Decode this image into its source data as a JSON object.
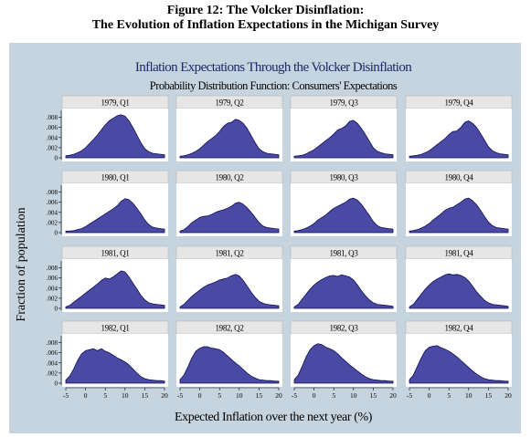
{
  "figure": {
    "title_line1": "Figure 12: The Volcker Disinflation:",
    "title_line2": "The Evolution of Inflation Expectations in the Michigan Survey"
  },
  "colors": {
    "panel_bg": "#c6d4df",
    "plot_bg": "#ffffff",
    "fill": "#4a4aa5",
    "stroke": "#101050",
    "title_color": "#1a2a6a",
    "subplot_header_bg": "#e6e6e6"
  },
  "chart_data": {
    "type": "area",
    "title": "Inflation Expectations Through the Volcker Disinflation",
    "subtitle": "Probability Distribution Function: Consumers' Expectations",
    "xlabel": "Expected Inflation over the next year (%)",
    "ylabel": "Fraction of population",
    "xlim": [
      -5,
      20
    ],
    "ylim": [
      0,
      0.009
    ],
    "xticks": [
      -5,
      0,
      5,
      10,
      15,
      20
    ],
    "xtick_labels": [
      "-5",
      "0",
      "5",
      "10",
      "15",
      "20"
    ],
    "yticks": [
      0,
      0.002,
      0.004,
      0.006,
      0.008
    ],
    "ytick_labels": [
      "0",
      ".002",
      ".004",
      ".006",
      ".008"
    ],
    "x": [
      -5,
      -4,
      -3,
      -2,
      -1,
      0,
      1,
      2,
      3,
      4,
      5,
      6,
      7,
      8,
      9,
      10,
      11,
      12,
      13,
      14,
      15,
      16,
      17,
      18,
      19,
      20
    ],
    "series": [
      {
        "name": "1979, Q1",
        "values": [
          0.0004,
          0.0005,
          0.0007,
          0.001,
          0.0014,
          0.002,
          0.0028,
          0.0036,
          0.0045,
          0.0055,
          0.0065,
          0.0073,
          0.0078,
          0.0083,
          0.0085,
          0.0082,
          0.0073,
          0.006,
          0.0045,
          0.003,
          0.0018,
          0.0012,
          0.0009,
          0.0008,
          0.0007,
          0.0006
        ]
      },
      {
        "name": "1979, Q2",
        "values": [
          0.0003,
          0.0004,
          0.0006,
          0.0009,
          0.0013,
          0.0018,
          0.0025,
          0.0032,
          0.0038,
          0.0044,
          0.0052,
          0.0062,
          0.0068,
          0.007,
          0.0076,
          0.0074,
          0.0068,
          0.0058,
          0.0044,
          0.003,
          0.0018,
          0.0012,
          0.0009,
          0.0008,
          0.0007,
          0.0006
        ]
      },
      {
        "name": "1979, Q3",
        "values": [
          0.0003,
          0.0004,
          0.0005,
          0.0008,
          0.0012,
          0.0016,
          0.0022,
          0.0028,
          0.0034,
          0.004,
          0.0047,
          0.0055,
          0.0058,
          0.0063,
          0.0072,
          0.0074,
          0.0068,
          0.0058,
          0.0046,
          0.0033,
          0.002,
          0.0013,
          0.001,
          0.0008,
          0.0007,
          0.0006
        ]
      },
      {
        "name": "1979, Q4",
        "values": [
          0.0003,
          0.0004,
          0.0005,
          0.0007,
          0.001,
          0.0014,
          0.002,
          0.0026,
          0.0032,
          0.0038,
          0.0046,
          0.0052,
          0.0053,
          0.006,
          0.007,
          0.0073,
          0.0068,
          0.006,
          0.0048,
          0.0035,
          0.0022,
          0.0014,
          0.001,
          0.0008,
          0.0007,
          0.0006
        ]
      },
      {
        "name": "1980, Q1",
        "values": [
          0.0003,
          0.0003,
          0.0004,
          0.0006,
          0.0008,
          0.0012,
          0.0017,
          0.0022,
          0.0027,
          0.0032,
          0.0037,
          0.0042,
          0.0047,
          0.0053,
          0.0062,
          0.0067,
          0.0065,
          0.0058,
          0.0048,
          0.0037,
          0.0025,
          0.0016,
          0.0011,
          0.0009,
          0.0008,
          0.0007
        ]
      },
      {
        "name": "1980, Q2",
        "values": [
          0.0003,
          0.0006,
          0.0012,
          0.002,
          0.0025,
          0.003,
          0.0032,
          0.0033,
          0.0036,
          0.004,
          0.0043,
          0.0045,
          0.0048,
          0.0052,
          0.0058,
          0.006,
          0.0056,
          0.0049,
          0.004,
          0.003,
          0.002,
          0.0013,
          0.001,
          0.0009,
          0.0008,
          0.0007
        ]
      },
      {
        "name": "1980, Q3",
        "values": [
          0.0003,
          0.0004,
          0.0006,
          0.0009,
          0.0013,
          0.0018,
          0.0025,
          0.003,
          0.0035,
          0.0042,
          0.0048,
          0.0052,
          0.0056,
          0.006,
          0.0066,
          0.0068,
          0.0064,
          0.0056,
          0.0045,
          0.0034,
          0.0022,
          0.0014,
          0.001,
          0.0009,
          0.0008,
          0.0007
        ]
      },
      {
        "name": "1980, Q4",
        "values": [
          0.0003,
          0.0004,
          0.0006,
          0.0009,
          0.0013,
          0.0018,
          0.0025,
          0.0031,
          0.0037,
          0.0044,
          0.0048,
          0.005,
          0.0055,
          0.006,
          0.0066,
          0.0068,
          0.0063,
          0.0055,
          0.0044,
          0.0032,
          0.0021,
          0.0014,
          0.001,
          0.0009,
          0.0008,
          0.0007
        ]
      },
      {
        "name": "1981, Q1",
        "values": [
          0.0003,
          0.0006,
          0.0012,
          0.0018,
          0.0024,
          0.003,
          0.0036,
          0.0042,
          0.0048,
          0.0055,
          0.006,
          0.0058,
          0.0062,
          0.0068,
          0.0074,
          0.0072,
          0.0062,
          0.005,
          0.0038,
          0.0026,
          0.0017,
          0.0011,
          0.0009,
          0.0008,
          0.0007,
          0.0006
        ]
      },
      {
        "name": "1981, Q2",
        "values": [
          0.0003,
          0.0008,
          0.0016,
          0.0024,
          0.003,
          0.0036,
          0.0042,
          0.0046,
          0.0049,
          0.0052,
          0.0056,
          0.0058,
          0.006,
          0.0064,
          0.0067,
          0.0064,
          0.0055,
          0.0044,
          0.0032,
          0.0022,
          0.0014,
          0.001,
          0.0008,
          0.0007,
          0.0006,
          0.0005
        ]
      },
      {
        "name": "1981, Q3",
        "values": [
          0.0003,
          0.0008,
          0.0018,
          0.0028,
          0.0038,
          0.0046,
          0.0052,
          0.0057,
          0.0061,
          0.0064,
          0.0065,
          0.0063,
          0.0066,
          0.0064,
          0.0062,
          0.0056,
          0.0046,
          0.0035,
          0.0025,
          0.0017,
          0.0011,
          0.0008,
          0.0007,
          0.0006,
          0.0005,
          0.0004
        ]
      },
      {
        "name": "1981, Q4",
        "values": [
          0.0003,
          0.0008,
          0.0018,
          0.0028,
          0.0038,
          0.0046,
          0.0053,
          0.0058,
          0.0062,
          0.0066,
          0.0068,
          0.0066,
          0.0067,
          0.0065,
          0.0061,
          0.0054,
          0.0044,
          0.0033,
          0.0024,
          0.0016,
          0.0011,
          0.0008,
          0.0007,
          0.0006,
          0.0005,
          0.0004
        ]
      },
      {
        "name": "1982, Q1",
        "values": [
          0.0006,
          0.0014,
          0.0028,
          0.0045,
          0.0058,
          0.0064,
          0.0066,
          0.0068,
          0.0064,
          0.0068,
          0.0063,
          0.006,
          0.0055,
          0.005,
          0.0046,
          0.0042,
          0.0036,
          0.0028,
          0.002,
          0.0013,
          0.0009,
          0.0007,
          0.0006,
          0.0005,
          0.0005,
          0.0004
        ]
      },
      {
        "name": "1982, Q2",
        "values": [
          0.0007,
          0.0016,
          0.0032,
          0.005,
          0.0063,
          0.0069,
          0.0072,
          0.0072,
          0.0069,
          0.0068,
          0.0066,
          0.0061,
          0.0054,
          0.0047,
          0.004,
          0.0034,
          0.0027,
          0.002,
          0.0014,
          0.001,
          0.0007,
          0.0006,
          0.0005,
          0.0005,
          0.0004,
          0.0004
        ]
      },
      {
        "name": "1982, Q3",
        "values": [
          0.0007,
          0.0016,
          0.0033,
          0.0052,
          0.0066,
          0.0074,
          0.0078,
          0.0076,
          0.0071,
          0.0068,
          0.0064,
          0.0058,
          0.005,
          0.0043,
          0.0036,
          0.003,
          0.0024,
          0.0018,
          0.0013,
          0.0009,
          0.0007,
          0.0006,
          0.0005,
          0.0005,
          0.0004,
          0.0004
        ]
      },
      {
        "name": "1982, Q4",
        "values": [
          0.0007,
          0.0016,
          0.0033,
          0.005,
          0.0064,
          0.0071,
          0.0073,
          0.0074,
          0.007,
          0.0067,
          0.0063,
          0.0058,
          0.0052,
          0.0045,
          0.0038,
          0.0031,
          0.0024,
          0.0018,
          0.0013,
          0.0009,
          0.0007,
          0.0006,
          0.0005,
          0.0005,
          0.0004,
          0.0004
        ]
      }
    ]
  }
}
